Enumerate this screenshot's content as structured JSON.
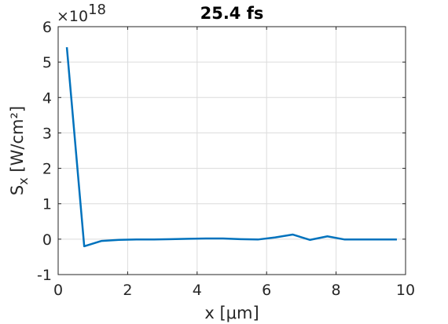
{
  "chart_data": {
    "type": "line",
    "title": "25.4 fs",
    "xlabel": "x [μm]",
    "ylabel": "S",
    "ylabel_sub": "x",
    "ylabel_unit": " [W/cm²]",
    "y_multiplier": "×10",
    "y_multiplier_exp": "18",
    "xlim": [
      0,
      10
    ],
    "ylim": [
      -1,
      6
    ],
    "xticks": [
      0,
      2,
      4,
      6,
      8,
      10
    ],
    "yticks": [
      -1,
      0,
      1,
      2,
      3,
      4,
      5,
      6
    ],
    "grid": true,
    "series": [
      {
        "color": "#0072BD",
        "x": [
          0.25,
          0.75,
          1.25,
          1.75,
          2.25,
          2.75,
          3.25,
          3.75,
          4.25,
          4.75,
          5.25,
          5.75,
          6.25,
          6.75,
          7.25,
          7.75,
          8.25,
          8.75,
          9.25,
          9.75
        ],
        "y": [
          5.42,
          -0.2,
          -0.05,
          -0.02,
          -0.01,
          -0.01,
          0.0,
          0.01,
          0.02,
          0.02,
          0.0,
          -0.01,
          0.05,
          0.13,
          -0.02,
          0.08,
          -0.01,
          -0.01,
          -0.01,
          -0.01
        ]
      }
    ]
  }
}
